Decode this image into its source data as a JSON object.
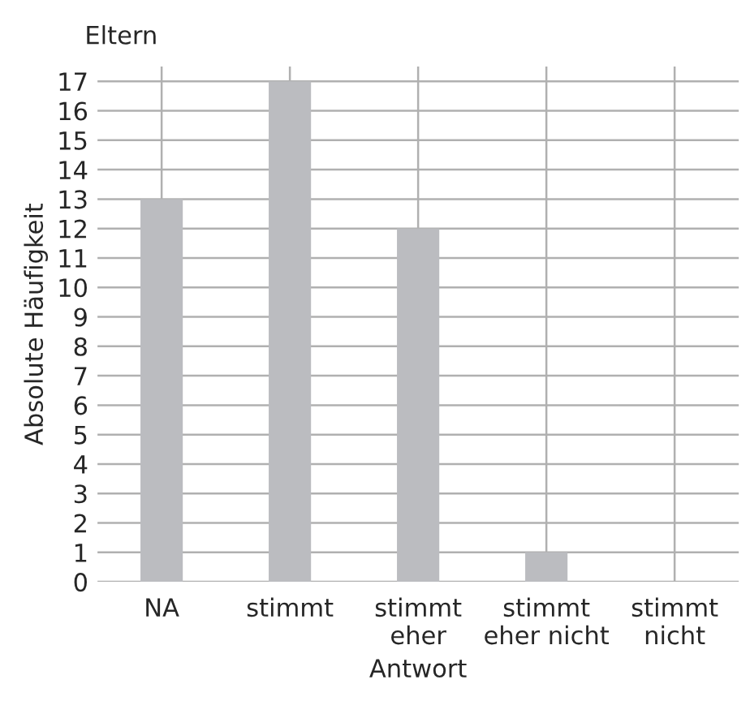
{
  "chart_data": {
    "type": "bar",
    "title": "Eltern",
    "xlabel": "Antwort",
    "ylabel": "Absolute Häufigkeit",
    "categories": [
      "NA",
      "stimmt",
      "stimmt\neher",
      "stimmt\neher nicht",
      "stimmt\nnicht"
    ],
    "values": [
      13,
      17,
      12,
      1,
      0
    ],
    "color": "#bbbcc0",
    "ylim": [
      0,
      17.5
    ],
    "yticks": [
      0,
      1,
      2,
      3,
      4,
      5,
      6,
      7,
      8,
      9,
      10,
      11,
      12,
      13,
      14,
      15,
      16,
      17
    ],
    "grid": true
  }
}
